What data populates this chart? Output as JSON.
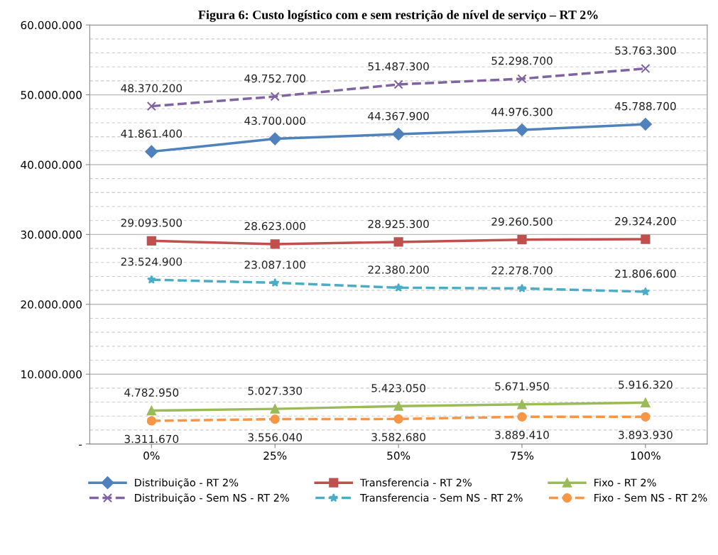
{
  "chart_data": {
    "type": "line",
    "title": "Figura 6: Custo logístico com e sem restrição de nível de serviço – RT 2%",
    "categories": [
      "0%",
      "25%",
      "50%",
      "75%",
      "100%"
    ],
    "series": [
      {
        "name": "Distribuição - RT 2%",
        "color": "#4f81bd",
        "marker": "diamond",
        "line_style": "solid",
        "values": [
          41861400,
          43700000,
          44367900,
          44976300,
          45788700
        ],
        "value_labels": [
          "41.861.400",
          "43.700.000",
          "44.367.900",
          "44.976.300",
          "45.788.700"
        ]
      },
      {
        "name": "Transferencia - RT 2%",
        "color": "#c0504d",
        "marker": "square",
        "line_style": "solid",
        "values": [
          29093500,
          28623000,
          28925300,
          29260500,
          29324200
        ],
        "value_labels": [
          "29.093.500",
          "28.623.000",
          "28.925.300",
          "29.260.500",
          "29.324.200"
        ]
      },
      {
        "name": "Fixo - RT 2%",
        "color": "#9bbb59",
        "marker": "triangle",
        "line_style": "solid",
        "values": [
          4782950,
          5027330,
          5423050,
          5671950,
          5916320
        ],
        "value_labels": [
          "4.782.950",
          "5.027.330",
          "5.423.050",
          "5.671.950",
          "5.916.320"
        ]
      },
      {
        "name": "Distribuição - Sem NS - RT 2%",
        "color": "#8064a2",
        "marker": "cross",
        "line_style": "dashed",
        "values": [
          48370200,
          49752700,
          51487300,
          52298700,
          53763300
        ],
        "value_labels": [
          "48.370.200",
          "49.752.700",
          "51.487.300",
          "52.298.700",
          "53.763.300"
        ]
      },
      {
        "name": "Transferencia - Sem NS - RT 2%",
        "color": "#4bacc6",
        "marker": "star",
        "line_style": "dashed",
        "values": [
          23524900,
          23087100,
          22380200,
          22278700,
          21806600
        ],
        "value_labels": [
          "23.524.900",
          "23.087.100",
          "22.380.200",
          "22.278.700",
          "21.806.600"
        ]
      },
      {
        "name": "Fixo - Sem NS - RT 2%",
        "color": "#f79646",
        "marker": "circle",
        "line_style": "dashed",
        "values": [
          3311670,
          3556040,
          3582680,
          3889410,
          3893930
        ],
        "value_labels": [
          "3.311.670",
          "3.556.040",
          "3.582.680",
          "3.889.410",
          "3.893.930"
        ]
      }
    ],
    "ylim": [
      0,
      60000000
    ],
    "yticks": [
      {
        "value": 0,
        "label": "-"
      },
      {
        "value": 10000000,
        "label": "10.000.000"
      },
      {
        "value": 20000000,
        "label": "20.000.000"
      },
      {
        "value": 30000000,
        "label": "30.000.000"
      },
      {
        "value": 40000000,
        "label": "40.000.000"
      },
      {
        "value": 50000000,
        "label": "50.000.000"
      },
      {
        "value": 60000000,
        "label": "60.000.000"
      }
    ],
    "grid": "y",
    "legend": "bottom"
  }
}
